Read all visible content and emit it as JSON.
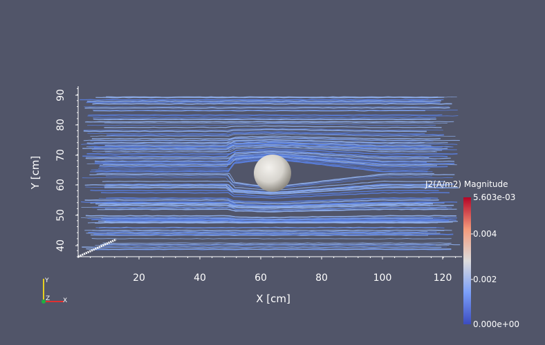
{
  "colors": {
    "background": "#515569",
    "streamline_low": "#5a7fe0",
    "streamline_mid": "#8fb0f0",
    "sphere": "#d8d6d2",
    "axis": "#ffffff"
  },
  "axes": {
    "x_title": "X [cm]",
    "y_title": "Y [cm]",
    "x_ticks": [
      "20",
      "40",
      "60",
      "80",
      "100",
      "120"
    ],
    "y_ticks": [
      "40",
      "50",
      "60",
      "70",
      "80",
      "90"
    ],
    "x_range": [
      0,
      125
    ],
    "y_range": [
      36,
      92
    ]
  },
  "colorbar": {
    "title": "J2(A/m2) Magnitude",
    "max_label": "5.603e-03",
    "mid_high_label": "0.004",
    "mid_low_label": "0.002",
    "min_label": "0.000e+00",
    "colormap": "cool-to-warm"
  },
  "orientation_triad": {
    "x_label": "X",
    "y_label": "Y",
    "z_label": "Z",
    "x_color": "#e03030",
    "y_color": "#e8d020",
    "z_color": "#20b040"
  },
  "scene": {
    "object": "sphere",
    "field": "streamlines"
  }
}
